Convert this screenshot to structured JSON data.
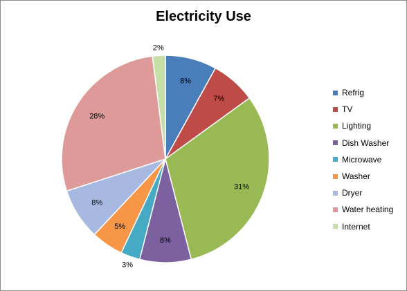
{
  "chart_data": {
    "type": "pie",
    "title": "Electricity Use",
    "categories": [
      "Refrig",
      "TV",
      "Lighting",
      "Dish Washer",
      "Microwave",
      "Washer",
      "Dryer",
      "Water heating",
      "Internet"
    ],
    "values": [
      8,
      7,
      31,
      8,
      3,
      5,
      8,
      28,
      2
    ],
    "data_labels": [
      "8%",
      "7%",
      "31%",
      "8%",
      "3%",
      "5%",
      "8%",
      "28%",
      "2%"
    ],
    "colors": [
      "#4a7ebb",
      "#be4b48",
      "#98b954",
      "#7d60a0",
      "#46aac5",
      "#f79646",
      "#a7b9e0",
      "#dd9a98",
      "#c6dfa6"
    ],
    "legend_position": "right",
    "start_angle": "12 o'clock",
    "direction": "clockwise"
  }
}
